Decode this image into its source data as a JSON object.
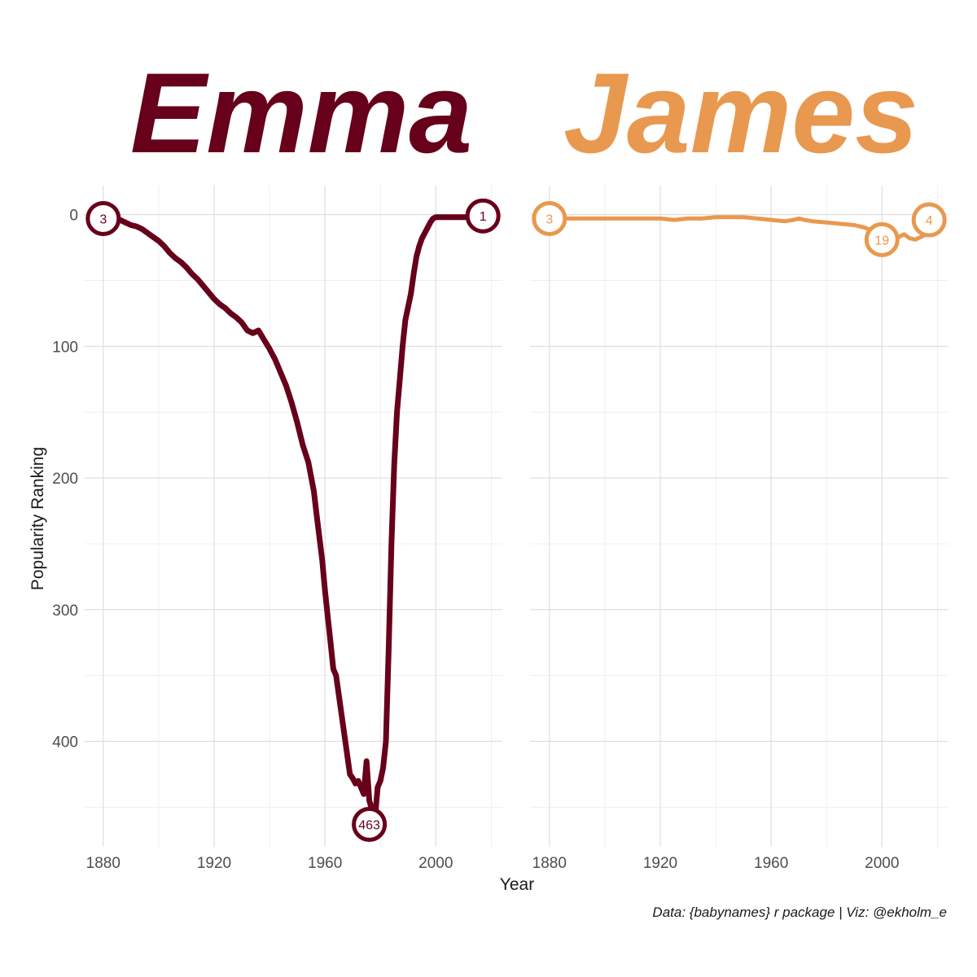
{
  "caption": "Data: {babynames} r package | Viz: @ekholm_e",
  "chart_data": [
    {
      "type": "line",
      "title": "Emma",
      "color": "#67001a",
      "xlabel": "Year",
      "ylabel": "Popularity Ranking",
      "xlim": [
        1873,
        2024
      ],
      "ylim": [
        0,
        480
      ],
      "y_reversed": true,
      "xticks": [
        "1880",
        "1920",
        "1960",
        "2000"
      ],
      "yticks": [
        "0",
        "100",
        "200",
        "300",
        "400"
      ],
      "grid": true,
      "series": [
        {
          "x": [
            1880,
            1882,
            1884,
            1886,
            1888,
            1890,
            1892,
            1894,
            1896,
            1898,
            1900,
            1902,
            1904,
            1906,
            1908,
            1910,
            1912,
            1914,
            1916,
            1918,
            1920,
            1922,
            1924,
            1926,
            1928,
            1930,
            1932,
            1934,
            1936,
            1938,
            1940,
            1942,
            1944,
            1946,
            1948,
            1950,
            1952,
            1954,
            1956,
            1957,
            1958,
            1959,
            1960,
            1961,
            1962,
            1963,
            1964,
            1965,
            1966,
            1967,
            1968,
            1969,
            1970,
            1971,
            1972,
            1973,
            1974,
            1975,
            1976,
            1977,
            1978,
            1979,
            1980,
            1981,
            1982,
            1983,
            1984,
            1985,
            1986,
            1987,
            1988,
            1989,
            1990,
            1991,
            1992,
            1993,
            1994,
            1995,
            1996,
            1997,
            1998,
            1999,
            2000,
            2001,
            2002,
            2003,
            2004,
            2006,
            2008,
            2010,
            2012,
            2014,
            2016,
            2017
          ],
          "y": [
            3,
            3,
            3,
            4,
            6,
            8,
            9,
            11,
            14,
            17,
            20,
            24,
            29,
            33,
            36,
            40,
            45,
            49,
            54,
            59,
            64,
            68,
            71,
            75,
            78,
            82,
            88,
            90,
            88,
            95,
            102,
            110,
            120,
            130,
            143,
            158,
            175,
            188,
            210,
            228,
            245,
            262,
            285,
            305,
            325,
            345,
            350,
            365,
            380,
            395,
            410,
            425,
            428,
            432,
            430,
            435,
            440,
            415,
            445,
            452,
            460,
            435,
            430,
            420,
            400,
            330,
            250,
            190,
            150,
            125,
            100,
            80,
            70,
            60,
            45,
            32,
            24,
            18,
            14,
            10,
            6,
            3,
            2,
            2,
            2,
            2,
            2,
            2,
            2,
            2,
            2,
            2,
            1,
            1
          ]
        }
      ],
      "annotations": [
        {
          "x": 1880,
          "y": 3,
          "label": "3"
        },
        {
          "x": 1976,
          "y": 463,
          "label": "463"
        },
        {
          "x": 2017,
          "y": 1,
          "label": "1"
        }
      ]
    },
    {
      "type": "line",
      "title": "James",
      "color": "#e8994f",
      "xlabel": "Year",
      "xlim": [
        1873,
        2024
      ],
      "ylim": [
        0,
        480
      ],
      "y_reversed": true,
      "xticks": [
        "1880",
        "1920",
        "1960",
        "2000"
      ],
      "grid": true,
      "series": [
        {
          "x": [
            1880,
            1890,
            1900,
            1910,
            1920,
            1925,
            1930,
            1935,
            1940,
            1945,
            1950,
            1955,
            1960,
            1965,
            1968,
            1970,
            1972,
            1975,
            1980,
            1985,
            1990,
            1992,
            1994,
            1996,
            1998,
            2000,
            2002,
            2004,
            2006,
            2008,
            2010,
            2012,
            2014,
            2016,
            2017
          ],
          "y": [
            3,
            3,
            3,
            3,
            3,
            4,
            3,
            3,
            2,
            2,
            2,
            3,
            4,
            5,
            4,
            3,
            4,
            5,
            6,
            7,
            8,
            9,
            10,
            12,
            14,
            16,
            17,
            18,
            17,
            15,
            18,
            19,
            17,
            15,
            4
          ]
        }
      ],
      "annotations": [
        {
          "x": 1880,
          "y": 3,
          "label": "3"
        },
        {
          "x": 2000,
          "y": 19,
          "label": "19"
        },
        {
          "x": 2017,
          "y": 4,
          "label": "4"
        }
      ]
    }
  ]
}
